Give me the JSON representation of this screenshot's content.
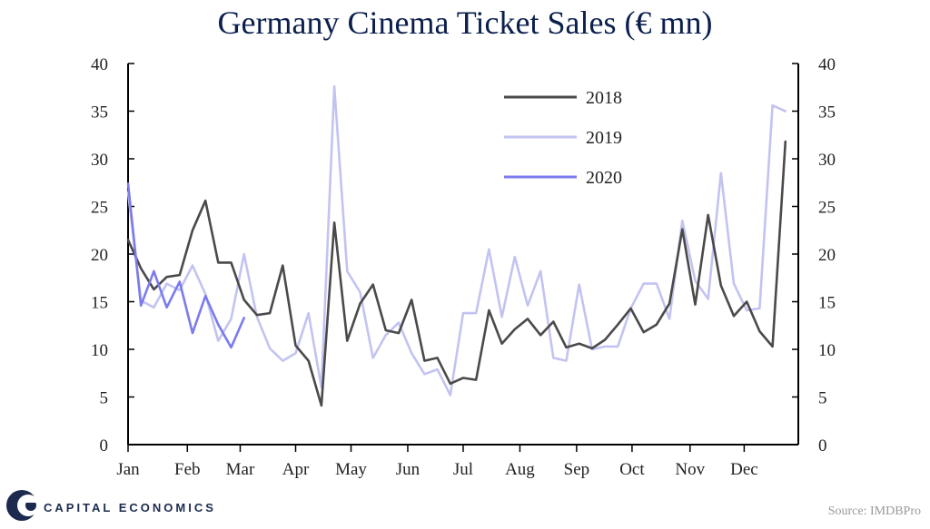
{
  "title": "Germany Cinema Ticket Sales (€ mn)",
  "source": "Source: IMDBPro",
  "brand": "CAPITAL ECONOMICS",
  "colors": {
    "2018": "#4a4a4a",
    "2019": "#c3c3f2",
    "2020": "#7b7bee",
    "axis": "#000000",
    "brand": "#1b2a4e"
  },
  "chart_data": {
    "type": "line",
    "title": "Germany Cinema Ticket Sales (€ mn)",
    "xlabel": "",
    "ylabel": "€ mn",
    "ylim": [
      0,
      40
    ],
    "yticks": [
      0,
      5,
      10,
      15,
      20,
      25,
      30,
      35,
      40
    ],
    "x_unit": "week of year",
    "xlim": [
      1,
      53
    ],
    "month_labels": [
      "Jan",
      "Feb",
      "Mar",
      "Apr",
      "May",
      "Jun",
      "Jul",
      "Aug",
      "Sep",
      "Oct",
      "Nov",
      "Dec"
    ],
    "month_positions": [
      1,
      5.6,
      9.7,
      14,
      18.3,
      22.7,
      27,
      31.4,
      35.8,
      40.1,
      44.6,
      48.8
    ],
    "legend": [
      "2018",
      "2019",
      "2020"
    ],
    "legend_position": "top-center",
    "series": [
      {
        "name": "2018",
        "values": [
          21.5,
          18.5,
          16.3,
          17.6,
          17.8,
          22.5,
          25.6,
          19.1,
          19.1,
          15.2,
          13.6,
          13.8,
          18.8,
          10.4,
          8.8,
          4.1,
          23.3,
          10.9,
          14.8,
          16.8,
          12,
          11.7,
          15.2,
          8.8,
          9.1,
          6.4,
          7,
          6.8,
          14.1,
          10.6,
          12.1,
          13.2,
          11.5,
          12.9,
          10.2,
          10.6,
          10.1,
          11,
          12.6,
          14.3,
          11.8,
          12.6,
          14.8,
          22.6,
          14.7,
          24.1,
          16.7,
          13.5,
          15,
          11.9,
          10.3,
          31.8
        ]
      },
      {
        "name": "2019",
        "values": [
          26.5,
          15.1,
          14.4,
          16.9,
          16.2,
          18.8,
          15.8,
          10.9,
          13.2,
          20,
          13.4,
          10.1,
          8.8,
          9.6,
          13.8,
          6,
          37.6,
          18.2,
          16,
          9.1,
          11.5,
          12.8,
          9.6,
          7.4,
          7.9,
          5.2,
          13.8,
          13.8,
          20.5,
          13.4,
          19.7,
          14.6,
          18.2,
          9.1,
          8.8,
          16.8,
          10,
          10.3,
          10.3,
          14.3,
          16.9,
          16.9,
          13.2,
          23.5,
          17.2,
          15.3,
          28.5,
          16.9,
          14.1,
          14.3,
          35.6,
          35
        ]
      },
      {
        "name": "2020",
        "values": [
          27.4,
          14.6,
          18.2,
          14.4,
          17.1,
          11.7,
          15.6,
          12.6,
          10.2,
          13.3
        ]
      }
    ]
  }
}
